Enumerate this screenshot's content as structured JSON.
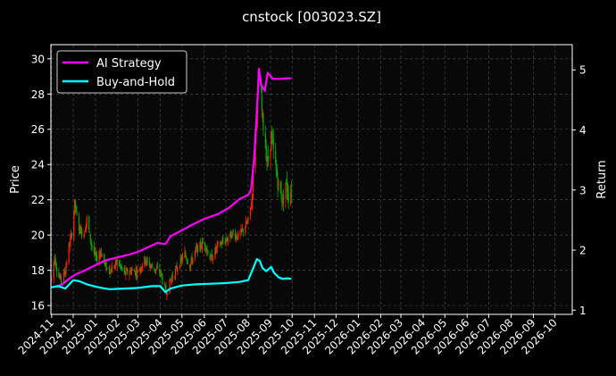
{
  "chart_data": {
    "type": "candlestick-line",
    "title": "cnstock [003023.SZ]",
    "ylabel_left": "Price",
    "ylabel_right": "Return",
    "xlabel": "",
    "ylim_left": [
      15.5,
      30.8
    ],
    "ylim_right": [
      0.93,
      5.42
    ],
    "yticks_left": [
      16,
      18,
      20,
      22,
      24,
      26,
      28,
      30
    ],
    "yticks_right": [
      1,
      2,
      3,
      4,
      5
    ],
    "xlim": [
      "2024-10-31",
      "2026-10-25"
    ],
    "xticks": [
      "2024-11",
      "2024-12",
      "2025-01",
      "2025-02",
      "2025-03",
      "2025-04",
      "2025-05",
      "2025-06",
      "2025-07",
      "2025-08",
      "2025-09",
      "2025-10",
      "2025-11",
      "2025-12",
      "2026-01",
      "2026-02",
      "2026-03",
      "2026-04",
      "2026-05",
      "2026-06",
      "2026-07",
      "2026-08",
      "2026-09",
      "2026-10"
    ],
    "grid": true,
    "legend_position": "top-left",
    "legend": [
      {
        "label": "AI Strategy",
        "color": "#ff00ff"
      },
      {
        "label": "Buy-and-Hold",
        "color": "#00ffff"
      }
    ],
    "up_color": "#ff2200",
    "down_color": "#00aa00",
    "price_anchors": [
      [
        "2024-11-01",
        17.5
      ],
      [
        "2024-11-05",
        18.8
      ],
      [
        "2024-11-10",
        17.7
      ],
      [
        "2024-11-15",
        17.4
      ],
      [
        "2024-11-20",
        18.0
      ],
      [
        "2024-11-25",
        19.3
      ],
      [
        "2024-11-30",
        20.3
      ],
      [
        "2024-12-03",
        21.8
      ],
      [
        "2024-12-08",
        20.5
      ],
      [
        "2024-12-15",
        20.0
      ],
      [
        "2024-12-20",
        20.9
      ],
      [
        "2024-12-26",
        19.5
      ],
      [
        "2025-01-02",
        18.6
      ],
      [
        "2025-01-08",
        19.1
      ],
      [
        "2025-01-15",
        18.2
      ],
      [
        "2025-01-22",
        18.0
      ],
      [
        "2025-02-01",
        18.5
      ],
      [
        "2025-02-10",
        17.8
      ],
      [
        "2025-02-20",
        18.0
      ],
      [
        "2025-03-01",
        17.9
      ],
      [
        "2025-03-10",
        18.6
      ],
      [
        "2025-03-20",
        18.2
      ],
      [
        "2025-04-01",
        17.9
      ],
      [
        "2025-04-06",
        17.1
      ],
      [
        "2025-04-09",
        16.7
      ],
      [
        "2025-04-15",
        17.4
      ],
      [
        "2025-04-25",
        18.2
      ],
      [
        "2025-05-05",
        18.9
      ],
      [
        "2025-05-12",
        18.3
      ],
      [
        "2025-05-20",
        19.1
      ],
      [
        "2025-06-01",
        19.6
      ],
      [
        "2025-06-10",
        18.6
      ],
      [
        "2025-06-20",
        19.4
      ],
      [
        "2025-07-01",
        19.7
      ],
      [
        "2025-07-10",
        20.1
      ],
      [
        "2025-07-18",
        19.9
      ],
      [
        "2025-07-25",
        20.3
      ],
      [
        "2025-08-01",
        20.8
      ],
      [
        "2025-08-06",
        22.0
      ],
      [
        "2025-08-10",
        25.0
      ],
      [
        "2025-08-14",
        27.8
      ],
      [
        "2025-08-17",
        29.2
      ],
      [
        "2025-08-20",
        27.0
      ],
      [
        "2025-08-24",
        25.4
      ],
      [
        "2025-08-28",
        24.0
      ],
      [
        "2025-09-02",
        25.6
      ],
      [
        "2025-09-06",
        24.4
      ],
      [
        "2025-09-10",
        23.3
      ],
      [
        "2025-09-14",
        22.4
      ],
      [
        "2025-09-18",
        22.0
      ],
      [
        "2025-09-22",
        23.0
      ],
      [
        "2025-09-26",
        22.3
      ],
      [
        "2025-09-30",
        22.5
      ]
    ],
    "series": [
      {
        "name": "AI Strategy",
        "color": "#ff00ff",
        "points": [
          [
            "2024-11-01",
            1.38
          ],
          [
            "2024-11-15",
            1.42
          ],
          [
            "2024-11-25",
            1.52
          ],
          [
            "2024-12-05",
            1.6
          ],
          [
            "2024-12-15",
            1.65
          ],
          [
            "2025-01-01",
            1.75
          ],
          [
            "2025-01-15",
            1.83
          ],
          [
            "2025-02-01",
            1.88
          ],
          [
            "2025-02-15",
            1.92
          ],
          [
            "2025-03-01",
            1.97
          ],
          [
            "2025-03-15",
            2.05
          ],
          [
            "2025-03-28",
            2.12
          ],
          [
            "2025-04-08",
            2.1
          ],
          [
            "2025-04-15",
            2.23
          ],
          [
            "2025-05-01",
            2.33
          ],
          [
            "2025-05-15",
            2.42
          ],
          [
            "2025-06-01",
            2.52
          ],
          [
            "2025-06-20",
            2.6
          ],
          [
            "2025-07-05",
            2.7
          ],
          [
            "2025-07-20",
            2.85
          ],
          [
            "2025-08-01",
            2.92
          ],
          [
            "2025-08-05",
            3.0
          ],
          [
            "2025-08-09",
            3.5
          ],
          [
            "2025-08-13",
            4.3
          ],
          [
            "2025-08-16",
            5.02
          ],
          [
            "2025-08-19",
            4.75
          ],
          [
            "2025-08-24",
            4.65
          ],
          [
            "2025-08-28",
            4.95
          ],
          [
            "2025-09-01",
            4.9
          ],
          [
            "2025-09-04",
            4.85
          ],
          [
            "2025-09-15",
            4.85
          ],
          [
            "2025-09-22",
            4.86
          ],
          [
            "2025-09-30",
            4.86
          ]
        ]
      },
      {
        "name": "Buy-and-Hold",
        "color": "#00ffff",
        "points": [
          [
            "2024-11-01",
            1.38
          ],
          [
            "2024-11-10",
            1.4
          ],
          [
            "2024-11-20",
            1.36
          ],
          [
            "2024-12-01",
            1.5
          ],
          [
            "2024-12-10",
            1.48
          ],
          [
            "2024-12-20",
            1.43
          ],
          [
            "2025-01-05",
            1.38
          ],
          [
            "2025-01-20",
            1.35
          ],
          [
            "2025-02-10",
            1.36
          ],
          [
            "2025-03-01",
            1.37
          ],
          [
            "2025-03-20",
            1.4
          ],
          [
            "2025-04-01",
            1.4
          ],
          [
            "2025-04-08",
            1.3
          ],
          [
            "2025-04-15",
            1.36
          ],
          [
            "2025-05-01",
            1.41
          ],
          [
            "2025-05-20",
            1.43
          ],
          [
            "2025-06-10",
            1.44
          ],
          [
            "2025-07-01",
            1.45
          ],
          [
            "2025-07-20",
            1.47
          ],
          [
            "2025-08-01",
            1.5
          ],
          [
            "2025-08-08",
            1.7
          ],
          [
            "2025-08-13",
            1.85
          ],
          [
            "2025-08-17",
            1.82
          ],
          [
            "2025-08-21",
            1.7
          ],
          [
            "2025-08-26",
            1.65
          ],
          [
            "2025-09-02",
            1.72
          ],
          [
            "2025-09-06",
            1.62
          ],
          [
            "2025-09-12",
            1.55
          ],
          [
            "2025-09-18",
            1.52
          ],
          [
            "2025-09-24",
            1.53
          ],
          [
            "2025-09-30",
            1.52
          ]
        ]
      }
    ]
  }
}
